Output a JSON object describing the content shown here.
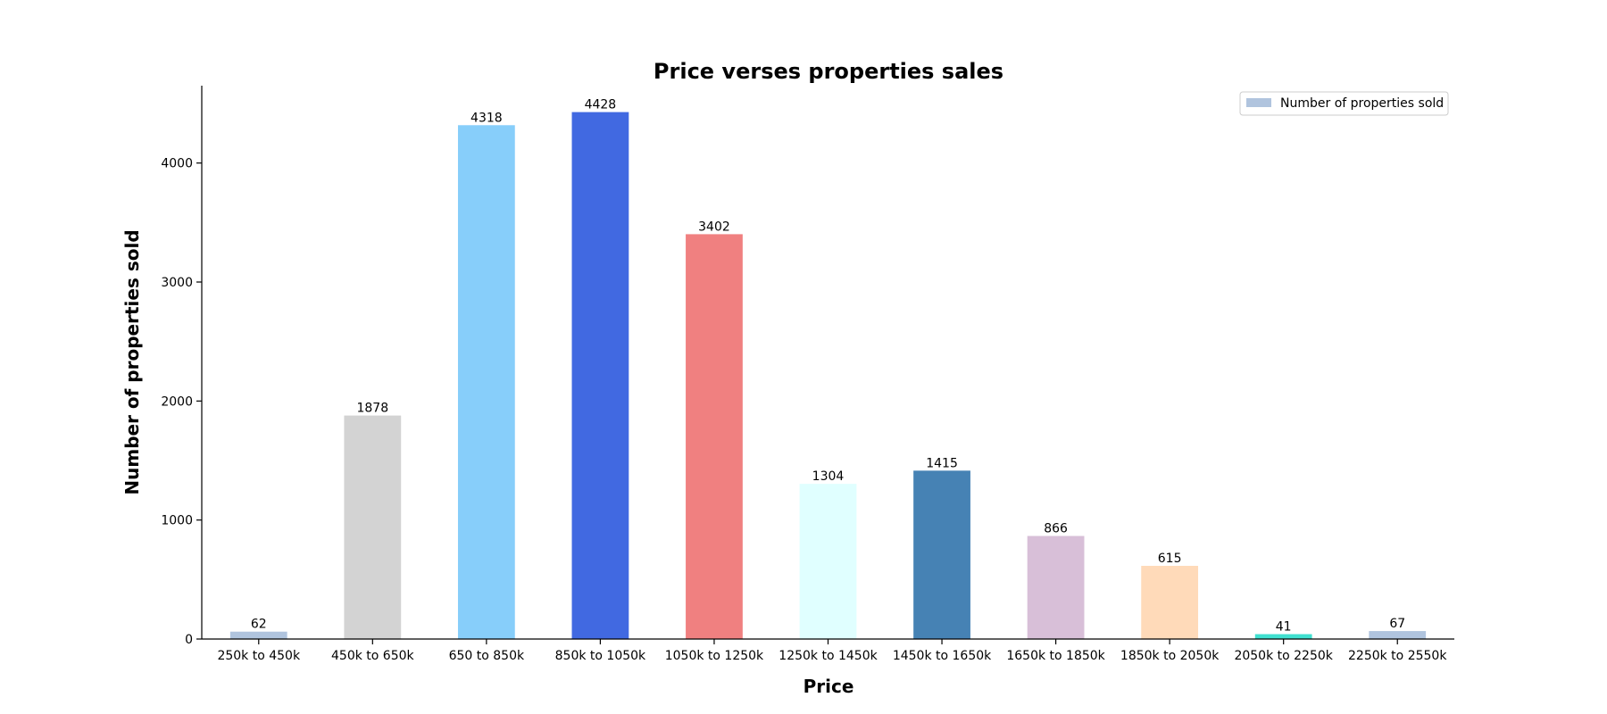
{
  "chart_data": {
    "type": "bar",
    "title": "Price verses properties sales",
    "xlabel": "Price",
    "ylabel": "Number of properties sold",
    "categories": [
      "250k to 450k",
      "450k to 650k",
      "650 to 850k",
      "850k to 1050k",
      "1050k to 1250k",
      "1250k to 1450k",
      "1450k to 1650k",
      "1650k to 1850k",
      "1850k to 2050k",
      "2050k to 2250k",
      "2250k to 2550k"
    ],
    "series": [
      {
        "name": "Number of properties sold",
        "values": [
          62,
          1878,
          4318,
          4428,
          3402,
          1304,
          1415,
          866,
          615,
          41,
          67
        ]
      }
    ],
    "bar_colors": [
      "#b0c4de",
      "#d3d3d3",
      "#87cefa",
      "#4169e1",
      "#f08080",
      "#e0ffff",
      "#4682b4",
      "#d8bfd8",
      "#ffdab9",
      "#40e0d0",
      "#b0c4de"
    ],
    "ylim": [
      0,
      4650
    ],
    "yticks": [
      0,
      1000,
      2000,
      3000,
      4000
    ],
    "legend_position": "top-right",
    "grid": false
  }
}
